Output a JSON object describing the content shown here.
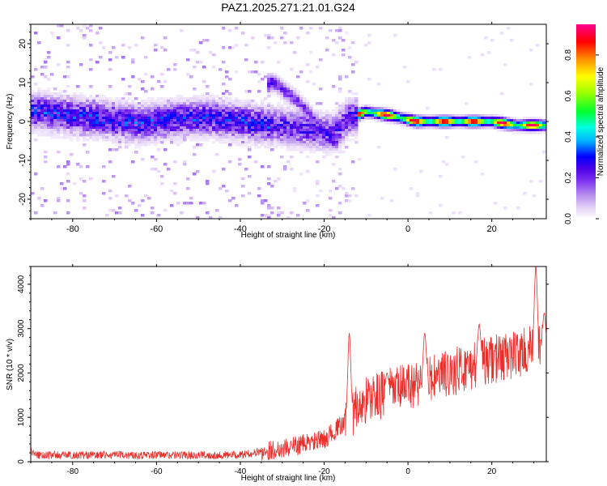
{
  "figure": {
    "title": "PAZ1.2025.271.21.01.G24"
  },
  "chart_data": [
    {
      "type": "heatmap",
      "xlabel": "Height of straight line (km)",
      "ylabel": "Frequency (Hz)",
      "xlim": [
        -90,
        33
      ],
      "ylim": [
        -25,
        25
      ],
      "xticks": [
        -80,
        -60,
        -40,
        -20,
        0,
        20
      ],
      "yticks": [
        -20,
        -10,
        0,
        10,
        20
      ],
      "colorbar": {
        "label": "Normalized spectral amplitude",
        "range": [
          0,
          0.95
        ],
        "ticks": [
          0.0,
          0.2,
          0.4,
          0.6,
          0.8
        ],
        "colormap": [
          "#ffffff",
          "#e8d8f8",
          "#b890f0",
          "#7a2df0",
          "#4a00e8",
          "#0000ff",
          "#00b4ff",
          "#00ffe0",
          "#00ff30",
          "#a0ff00",
          "#ffff00",
          "#ff9000",
          "#ff0000",
          "#ff0090"
        ]
      },
      "ridge": [
        {
          "x": -88,
          "f": 2.5
        },
        {
          "x": -80,
          "f": 1.5
        },
        {
          "x": -72,
          "f": 0.5
        },
        {
          "x": -64,
          "f": -0.5
        },
        {
          "x": -56,
          "f": 0.5
        },
        {
          "x": -48,
          "f": 1.0
        },
        {
          "x": -40,
          "f": 0.0
        },
        {
          "x": -32,
          "f": -1.0
        },
        {
          "x": -24,
          "f": -2.0
        },
        {
          "x": -18,
          "f": -3.0
        },
        {
          "x": -14,
          "f": 1.0
        },
        {
          "x": -10,
          "f": 2.5
        },
        {
          "x": -4,
          "f": 1.5
        },
        {
          "x": 2,
          "f": 0.0
        },
        {
          "x": 8,
          "f": 0.0
        },
        {
          "x": 14,
          "f": 0.0
        },
        {
          "x": 20,
          "f": 0.0
        },
        {
          "x": 26,
          "f": -1.0
        },
        {
          "x": 32,
          "f": -1.0
        }
      ],
      "secondary_ridge": [
        {
          "x": -32,
          "f": 10.0
        },
        {
          "x": -26,
          "f": 5.0
        },
        {
          "x": -22,
          "f": 0.0
        },
        {
          "x": -18,
          "f": -5.0
        }
      ]
    },
    {
      "type": "line",
      "xlabel": "Height of straight line (km)",
      "ylabel": "SNR (10 * v/v)",
      "xlim": [
        -90,
        33
      ],
      "ylim": [
        0,
        4400
      ],
      "xticks": [
        -80,
        -60,
        -40,
        -20,
        0,
        20
      ],
      "yticks": [
        0,
        1000,
        2000,
        3000,
        4000
      ],
      "color": "#e8302a",
      "trend": [
        {
          "x": -90,
          "y": 150
        },
        {
          "x": -40,
          "y": 150
        },
        {
          "x": -30,
          "y": 300
        },
        {
          "x": -20,
          "y": 500
        },
        {
          "x": -15,
          "y": 900
        },
        {
          "x": -10,
          "y": 1400
        },
        {
          "x": 0,
          "y": 1700
        },
        {
          "x": 10,
          "y": 2000
        },
        {
          "x": 20,
          "y": 2300
        },
        {
          "x": 33,
          "y": 2600
        }
      ],
      "peaks": [
        {
          "x": -14,
          "y": 2900
        },
        {
          "x": -5,
          "y": 2000
        },
        {
          "x": 4,
          "y": 2900
        },
        {
          "x": 17,
          "y": 3100
        },
        {
          "x": 30.5,
          "y": 4400
        },
        {
          "x": 32.5,
          "y": 3350
        }
      ]
    }
  ]
}
